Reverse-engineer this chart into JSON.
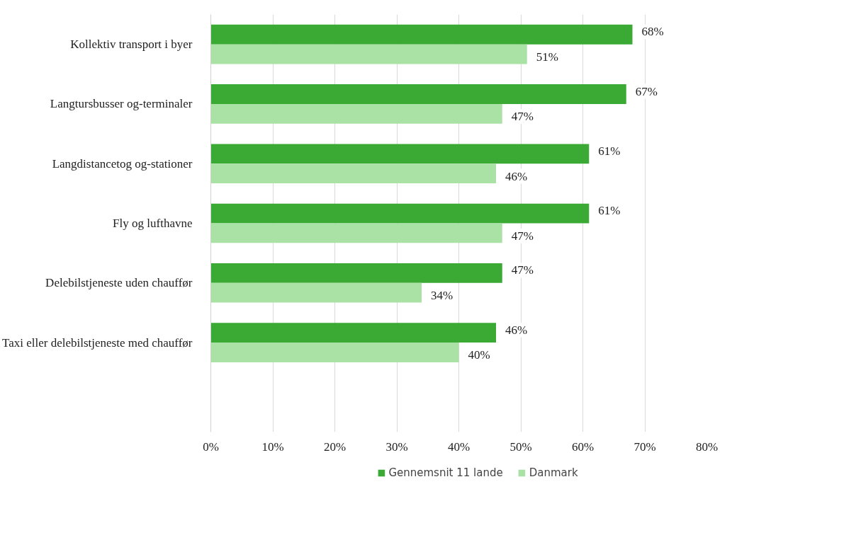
{
  "chart_data": {
    "type": "bar",
    "orientation": "horizontal",
    "categories": [
      "Kollektiv transport i byer",
      "Langtursbusser og-terminaler",
      "Langdistancetog og-stationer",
      "Fly og lufthavne",
      "Delebilstjeneste uden chauffør",
      "Taxi eller delebilstjeneste med chauffør"
    ],
    "series": [
      {
        "name": "Gennemsnit 11 lande",
        "color": "#3aaa35",
        "values": [
          68,
          67,
          61,
          61,
          47,
          46
        ],
        "value_labels": [
          "68%",
          "67%",
          "61%",
          "61%",
          "47%",
          "46%"
        ]
      },
      {
        "name": "Danmark",
        "color": "#a9e2a4",
        "values": [
          51,
          47,
          46,
          47,
          34,
          40
        ],
        "value_labels": [
          "51%",
          "47%",
          "46%",
          "47%",
          "34%",
          "40%"
        ]
      }
    ],
    "xlim": [
      0,
      80
    ],
    "xticks": [
      {
        "value": 0,
        "label": "0%"
      },
      {
        "value": 10,
        "label": "10%"
      },
      {
        "value": 20,
        "label": "20%"
      },
      {
        "value": 30,
        "label": "30%"
      },
      {
        "value": 40,
        "label": "40%"
      },
      {
        "value": 50,
        "label": "50%"
      },
      {
        "value": 60,
        "label": "60%"
      },
      {
        "value": 70,
        "label": "70%"
      },
      {
        "value": 80,
        "label": "80%"
      }
    ],
    "grid": "x",
    "legend": "bottom"
  }
}
